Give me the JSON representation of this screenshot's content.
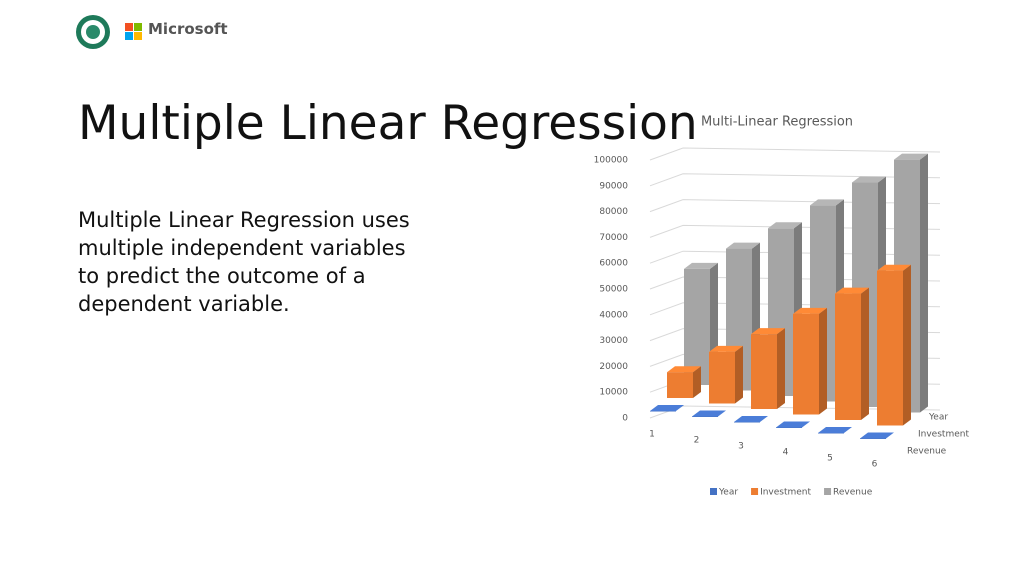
{
  "slide": {
    "brand": "Microsoft",
    "title": "Multiple Linear Regression",
    "body": "Multiple Linear Regression uses multiple independent variables to predict the outcome of a dependent variable."
  },
  "chart_data": {
    "type": "bar3d",
    "title": "Multi-Linear Regression",
    "categories": [
      "1",
      "2",
      "3",
      "4",
      "5",
      "6"
    ],
    "series": [
      {
        "name": "Year",
        "color": "#4472c4",
        "values": [
          1,
          2,
          3,
          4,
          5,
          6
        ]
      },
      {
        "name": "Investment",
        "color": "#ed7d31",
        "values": [
          10000,
          20000,
          29000,
          39000,
          49000,
          60000
        ]
      },
      {
        "name": "Revenue",
        "color": "#a5a5a5",
        "values": [
          45000,
          55000,
          65000,
          76000,
          87000,
          98000
        ]
      }
    ],
    "ylim": [
      0,
      100000
    ],
    "yticks": [
      0,
      10000,
      20000,
      30000,
      40000,
      50000,
      60000,
      70000,
      80000,
      90000,
      100000
    ],
    "grid": true,
    "legend": "bottom"
  }
}
